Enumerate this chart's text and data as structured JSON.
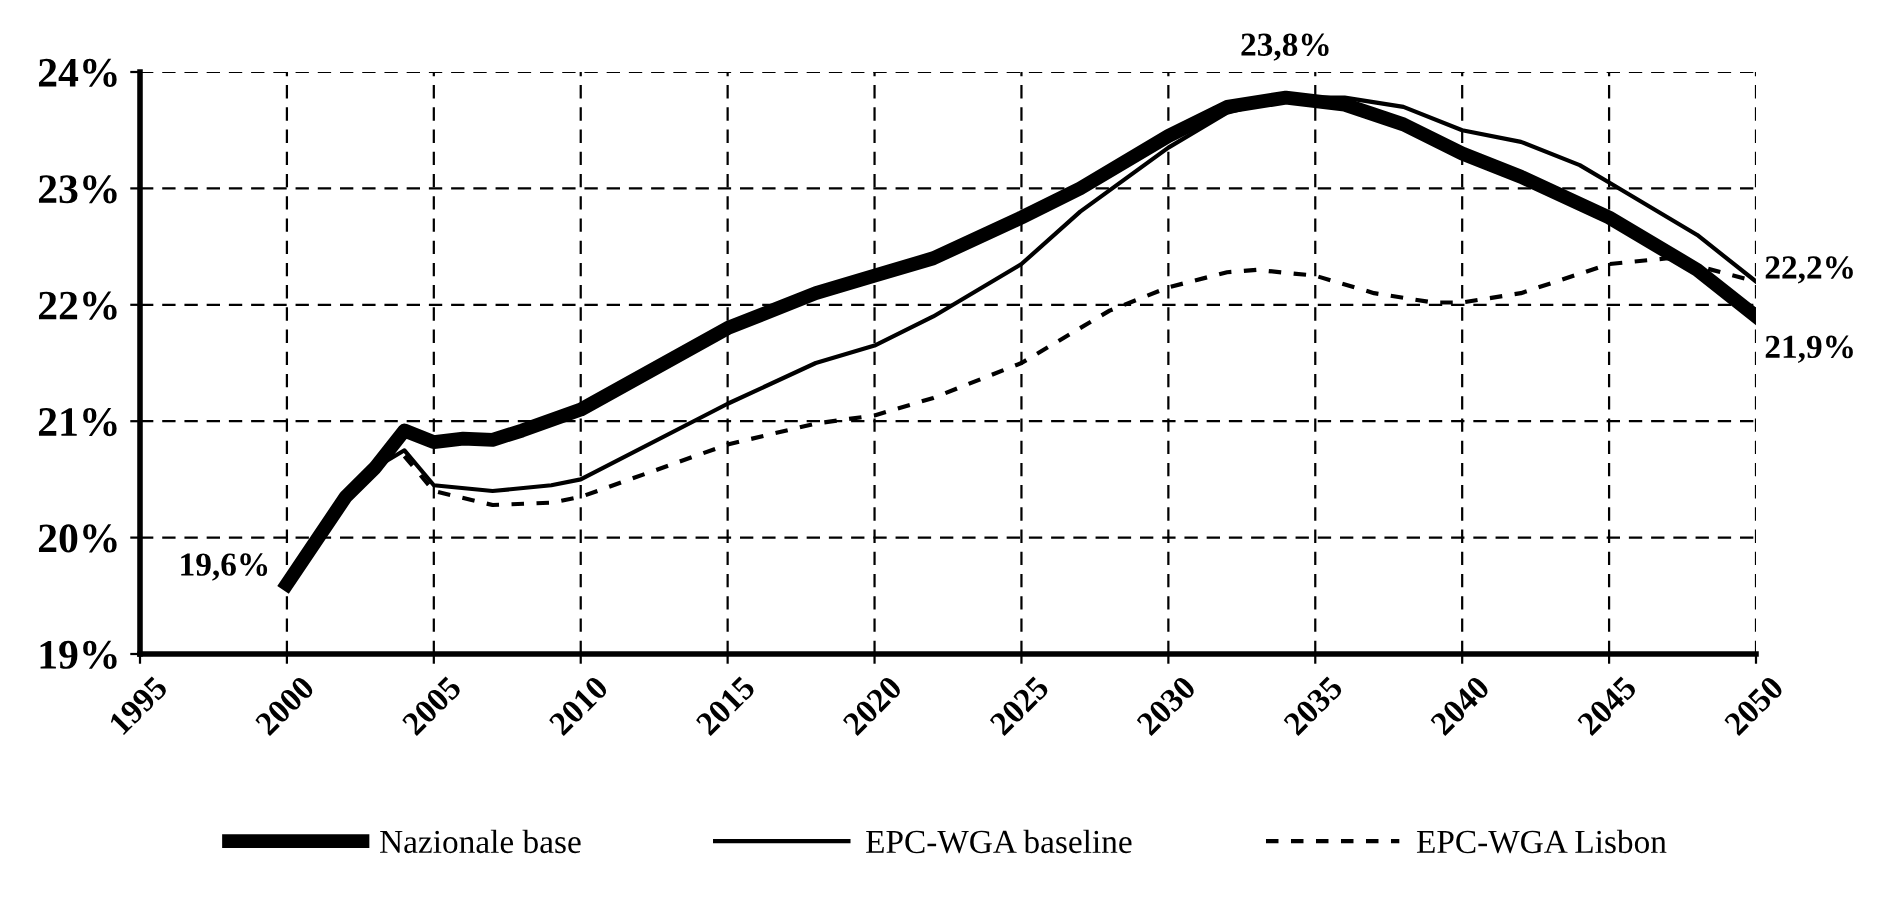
{
  "chart_data": {
    "type": "line",
    "x": [
      2000,
      2002,
      2003,
      2004,
      2005,
      2006,
      2007,
      2008,
      2010,
      2015,
      2018,
      2020,
      2022,
      2025,
      2027,
      2030,
      2032,
      2034,
      2036,
      2038,
      2040,
      2042,
      2045,
      2048,
      2050
    ],
    "series": [
      {
        "name": "Nazionale base",
        "color": "#000000",
        "values": [
          19.6,
          20.35,
          20.6,
          20.92,
          20.82,
          20.85,
          20.84,
          20.92,
          21.1,
          21.8,
          22.1,
          22.25,
          22.4,
          22.75,
          23.0,
          23.45,
          23.7,
          23.78,
          23.72,
          23.55,
          23.3,
          23.1,
          22.75,
          22.3,
          21.9
        ]
      },
      {
        "name": "EPC-WGA baseline",
        "color": "#000000",
        "x": [
          2000,
          2002,
          2003,
          2004,
          2005,
          2007,
          2009,
          2010,
          2015,
          2018,
          2020,
          2022,
          2025,
          2027,
          2030,
          2032,
          2034,
          2036,
          2038,
          2040,
          2042,
          2044,
          2045,
          2048,
          2050
        ],
        "values": [
          19.6,
          20.35,
          20.6,
          20.75,
          20.45,
          20.4,
          20.45,
          20.5,
          21.15,
          21.5,
          21.65,
          21.9,
          22.35,
          22.8,
          23.35,
          23.65,
          23.78,
          23.78,
          23.7,
          23.5,
          23.4,
          23.2,
          23.05,
          22.6,
          22.2
        ]
      },
      {
        "name": "EPC-WGA Lisbon",
        "color": "#000000",
        "line_style": "dashed",
        "x": [
          2004,
          2005,
          2007,
          2009,
          2010,
          2015,
          2018,
          2020,
          2022,
          2025,
          2028,
          2030,
          2032,
          2033,
          2035,
          2037,
          2039,
          2040,
          2042,
          2045,
          2047,
          2050
        ],
        "values": [
          20.7,
          20.4,
          20.28,
          20.3,
          20.35,
          20.8,
          20.98,
          21.05,
          21.2,
          21.5,
          21.95,
          22.15,
          22.28,
          22.3,
          22.25,
          22.1,
          22.02,
          22.02,
          22.1,
          22.35,
          22.4,
          22.2
        ]
      }
    ],
    "xlim": [
      1995,
      2050
    ],
    "xticks": [
      1995,
      2000,
      2005,
      2010,
      2015,
      2020,
      2025,
      2030,
      2035,
      2040,
      2045,
      2050
    ],
    "ylim": [
      19,
      24
    ],
    "yticks": [
      {
        "value": 19,
        "label": "19%"
      },
      {
        "value": 20,
        "label": "20%"
      },
      {
        "value": 21,
        "label": "21%"
      },
      {
        "value": 22,
        "label": "22%"
      },
      {
        "value": 23,
        "label": "23%"
      },
      {
        "value": 24,
        "label": "24%"
      }
    ],
    "grid": true,
    "legend": "bottom",
    "marker": "none",
    "annotations": [
      {
        "text": "19,6%",
        "x": 2000,
        "y": 19.6
      },
      {
        "text": "23,8%",
        "x": 2034,
        "y": 23.78
      },
      {
        "text": "22,2%",
        "x": 2050,
        "y": 22.2
      },
      {
        "text": "21,9%",
        "x": 2050,
        "y": 21.9
      }
    ]
  }
}
